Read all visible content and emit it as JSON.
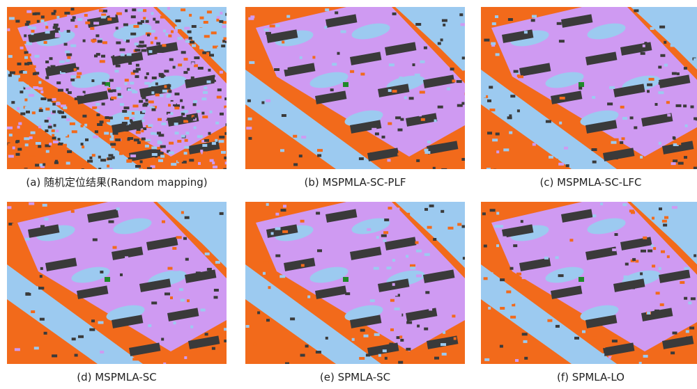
{
  "panels": [
    {
      "caption": "(a) 随机定位结果(Random mapping)"
    },
    {
      "caption": "(b) MSPMLA-SC-PLF"
    },
    {
      "caption": "(c) MSPMLA-SC-LFC"
    },
    {
      "caption": "(d) MSPMLA-SC"
    },
    {
      "caption": "(e) SPMLA-SC"
    },
    {
      "caption": "(f) SPMLA-LO"
    }
  ]
}
